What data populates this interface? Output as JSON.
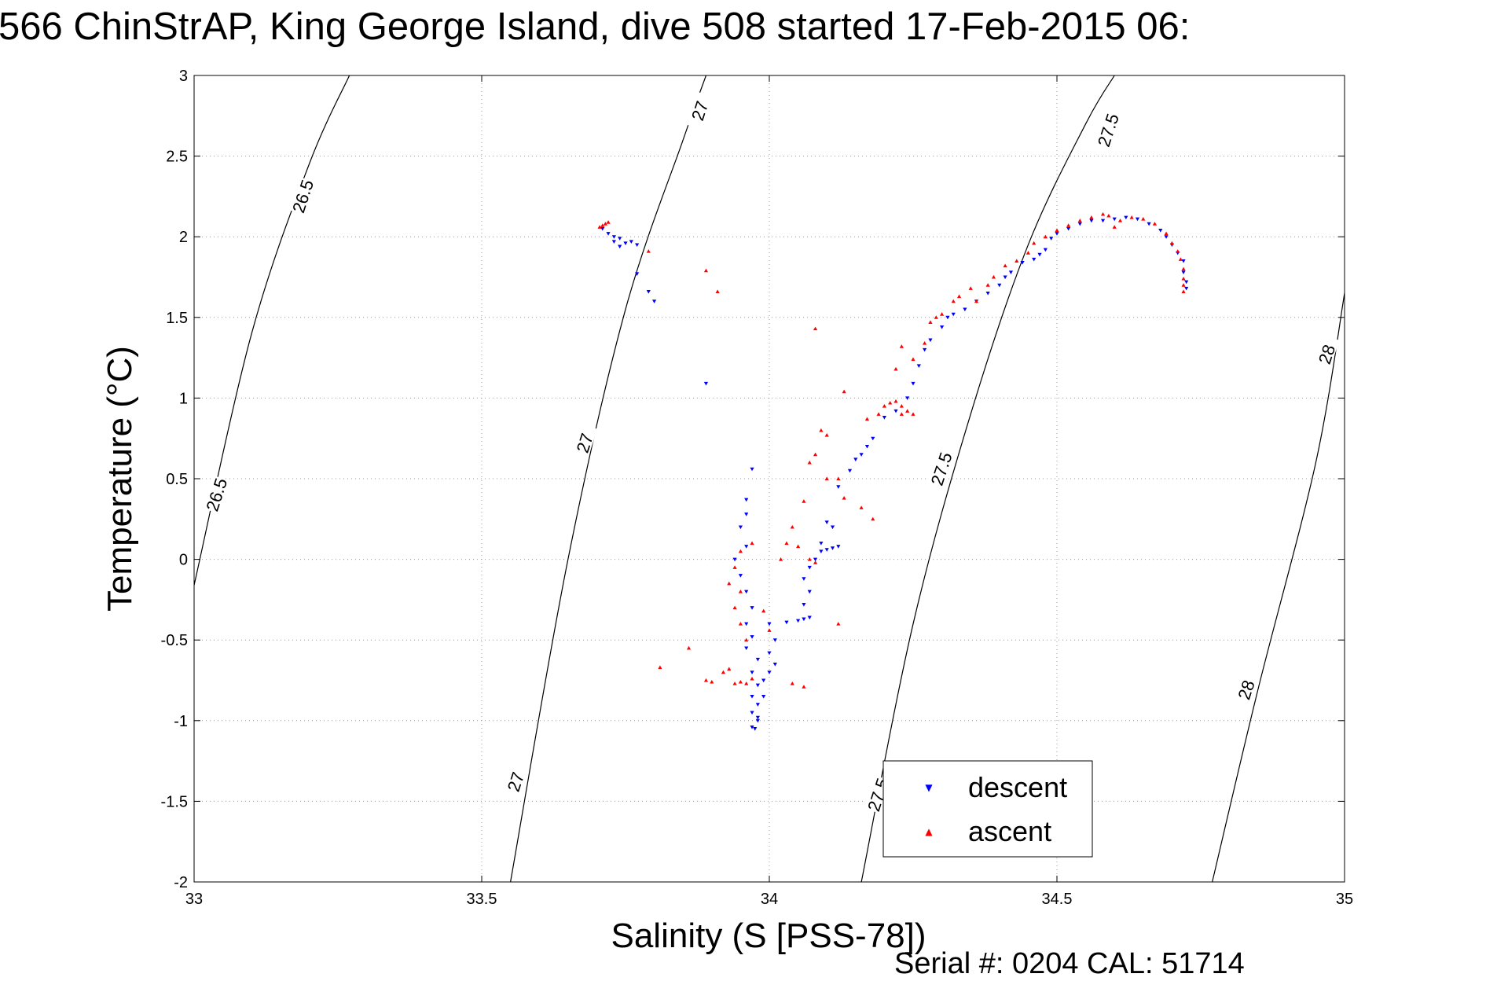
{
  "chart_data": {
    "type": "scatter",
    "title": "566 ChinStrAP, King George Island, dive 508 started 17-Feb-2015 06:",
    "xlabel": "Salinity (S [PSS-78])",
    "ylabel": "Temperature (°C)",
    "xlim": [
      33,
      35
    ],
    "ylim": [
      -2,
      3
    ],
    "xticks": [
      33,
      33.5,
      34,
      34.5,
      35
    ],
    "xtick_labels": [
      "33",
      "33.5",
      "34",
      "34.5",
      "35"
    ],
    "yticks": [
      3,
      2.5,
      2,
      1.5,
      1,
      0.5,
      0,
      -0.5,
      -1,
      -1.5,
      -2
    ],
    "ytick_labels": [
      "3",
      "2.5",
      "2",
      "1.5",
      "1",
      "0.5",
      "0",
      "-0.5",
      "-1",
      "-1.5",
      "-2"
    ],
    "grid": true,
    "legend_position": "bottom-right",
    "series": [
      {
        "name": "descent",
        "color": "#0000ff",
        "marker": "triangle-down",
        "points": [
          [
            33.71,
            2.05
          ],
          [
            33.72,
            2.02
          ],
          [
            33.73,
            2.0
          ],
          [
            33.73,
            1.97
          ],
          [
            33.74,
            1.99
          ],
          [
            33.75,
            1.96
          ],
          [
            33.74,
            1.94
          ],
          [
            33.76,
            1.97
          ],
          [
            33.77,
            1.95
          ],
          [
            33.77,
            1.77
          ],
          [
            33.79,
            1.66
          ],
          [
            33.8,
            1.6
          ],
          [
            33.89,
            1.09
          ],
          [
            33.97,
            0.56
          ],
          [
            33.96,
            0.37
          ],
          [
            33.96,
            0.28
          ],
          [
            33.95,
            0.2
          ],
          [
            33.96,
            0.08
          ],
          [
            33.94,
            0.0
          ],
          [
            33.95,
            -0.1
          ],
          [
            33.96,
            -0.2
          ],
          [
            33.97,
            -0.3
          ],
          [
            33.96,
            -0.4
          ],
          [
            33.97,
            -0.48
          ],
          [
            33.96,
            -0.55
          ],
          [
            33.98,
            -0.62
          ],
          [
            33.97,
            -0.7
          ],
          [
            33.98,
            -0.78
          ],
          [
            33.97,
            -0.85
          ],
          [
            33.98,
            -0.9
          ],
          [
            33.97,
            -0.95
          ],
          [
            33.98,
            -1.0
          ],
          [
            33.97,
            -1.04
          ],
          [
            33.975,
            -1.05
          ],
          [
            33.98,
            -0.98
          ],
          [
            33.99,
            -0.85
          ],
          [
            33.99,
            -0.75
          ],
          [
            34.0,
            -0.7
          ],
          [
            34.01,
            -0.65
          ],
          [
            34.0,
            -0.58
          ],
          [
            34.01,
            -0.5
          ],
          [
            34.0,
            -0.4
          ],
          [
            34.03,
            -0.39
          ],
          [
            34.05,
            -0.38
          ],
          [
            34.06,
            -0.37
          ],
          [
            34.07,
            -0.36
          ],
          [
            34.06,
            -0.28
          ],
          [
            34.07,
            -0.2
          ],
          [
            34.06,
            -0.12
          ],
          [
            34.07,
            -0.05
          ],
          [
            34.08,
            0.0
          ],
          [
            34.09,
            0.05
          ],
          [
            34.1,
            0.06
          ],
          [
            34.11,
            0.07
          ],
          [
            34.12,
            0.08
          ],
          [
            34.11,
            0.2
          ],
          [
            34.09,
            0.1
          ],
          [
            34.1,
            0.23
          ],
          [
            34.12,
            0.45
          ],
          [
            34.14,
            0.55
          ],
          [
            34.15,
            0.62
          ],
          [
            34.16,
            0.65
          ],
          [
            34.17,
            0.7
          ],
          [
            34.18,
            0.75
          ],
          [
            34.2,
            0.88
          ],
          [
            34.22,
            0.92
          ],
          [
            34.24,
            1.0
          ],
          [
            34.25,
            1.09
          ],
          [
            34.26,
            1.2
          ],
          [
            34.27,
            1.3
          ],
          [
            34.28,
            1.36
          ],
          [
            34.3,
            1.44
          ],
          [
            34.31,
            1.5
          ],
          [
            34.32,
            1.52
          ],
          [
            34.34,
            1.55
          ],
          [
            34.36,
            1.6
          ],
          [
            34.38,
            1.65
          ],
          [
            34.4,
            1.7
          ],
          [
            34.41,
            1.75
          ],
          [
            34.42,
            1.78
          ],
          [
            34.44,
            1.84
          ],
          [
            34.46,
            1.86
          ],
          [
            34.47,
            1.89
          ],
          [
            34.48,
            1.92
          ],
          [
            34.49,
            1.99
          ],
          [
            34.5,
            2.02
          ],
          [
            34.52,
            2.05
          ],
          [
            34.54,
            2.08
          ],
          [
            34.56,
            2.1
          ],
          [
            34.58,
            2.1
          ],
          [
            34.6,
            2.11
          ],
          [
            34.62,
            2.12
          ],
          [
            34.64,
            2.11
          ],
          [
            34.66,
            2.08
          ],
          [
            34.68,
            2.04
          ],
          [
            34.69,
            2.0
          ],
          [
            34.7,
            1.95
          ],
          [
            34.71,
            1.9
          ],
          [
            34.72,
            1.85
          ],
          [
            34.72,
            1.78
          ],
          [
            34.725,
            1.72
          ],
          [
            34.725,
            1.68
          ]
        ]
      },
      {
        "name": "ascent",
        "color": "#ff0000",
        "marker": "triangle-up",
        "points": [
          [
            33.705,
            2.06
          ],
          [
            33.715,
            2.08
          ],
          [
            33.72,
            2.09
          ],
          [
            33.71,
            2.07
          ],
          [
            33.79,
            1.91
          ],
          [
            33.89,
            1.79
          ],
          [
            33.91,
            1.66
          ],
          [
            34.08,
            1.43
          ],
          [
            33.81,
            -0.67
          ],
          [
            33.86,
            -0.55
          ],
          [
            33.89,
            -0.75
          ],
          [
            33.9,
            -0.76
          ],
          [
            33.92,
            -0.7
          ],
          [
            33.93,
            -0.68
          ],
          [
            33.94,
            -0.77
          ],
          [
            33.95,
            -0.76
          ],
          [
            33.96,
            -0.77
          ],
          [
            33.97,
            -0.74
          ],
          [
            33.96,
            -0.5
          ],
          [
            33.95,
            -0.4
          ],
          [
            33.94,
            -0.3
          ],
          [
            33.95,
            -0.2
          ],
          [
            33.93,
            -0.15
          ],
          [
            33.94,
            -0.05
          ],
          [
            33.95,
            0.05
          ],
          [
            33.97,
            0.1
          ],
          [
            33.99,
            -0.32
          ],
          [
            34.0,
            -0.44
          ],
          [
            34.04,
            -0.77
          ],
          [
            34.06,
            -0.79
          ],
          [
            34.02,
            0.0
          ],
          [
            34.03,
            0.1
          ],
          [
            34.04,
            0.2
          ],
          [
            34.05,
            0.08
          ],
          [
            34.07,
            0.0
          ],
          [
            34.08,
            -0.02
          ],
          [
            34.06,
            0.36
          ],
          [
            34.07,
            0.6
          ],
          [
            34.08,
            0.65
          ],
          [
            34.1,
            0.5
          ],
          [
            34.09,
            0.8
          ],
          [
            34.1,
            0.77
          ],
          [
            34.12,
            0.5
          ],
          [
            34.12,
            -0.4
          ],
          [
            34.16,
            0.32
          ],
          [
            34.18,
            0.25
          ],
          [
            34.13,
            0.38
          ],
          [
            34.13,
            1.04
          ],
          [
            34.17,
            0.87
          ],
          [
            34.19,
            0.9
          ],
          [
            34.2,
            0.95
          ],
          [
            34.21,
            0.97
          ],
          [
            34.22,
            0.98
          ],
          [
            34.23,
            0.95
          ],
          [
            34.24,
            0.92
          ],
          [
            34.23,
            0.9
          ],
          [
            34.25,
            0.9
          ],
          [
            34.22,
            1.18
          ],
          [
            34.23,
            1.32
          ],
          [
            34.25,
            1.24
          ],
          [
            34.27,
            1.34
          ],
          [
            34.28,
            1.47
          ],
          [
            34.29,
            1.5
          ],
          [
            34.3,
            1.52
          ],
          [
            34.32,
            1.6
          ],
          [
            34.33,
            1.63
          ],
          [
            34.35,
            1.68
          ],
          [
            34.36,
            1.6
          ],
          [
            34.38,
            1.7
          ],
          [
            34.39,
            1.75
          ],
          [
            34.41,
            1.82
          ],
          [
            34.43,
            1.85
          ],
          [
            34.45,
            1.9
          ],
          [
            34.46,
            1.96
          ],
          [
            34.48,
            2.0
          ],
          [
            34.5,
            2.04
          ],
          [
            34.52,
            2.07
          ],
          [
            34.54,
            2.1
          ],
          [
            34.56,
            2.12
          ],
          [
            34.58,
            2.14
          ],
          [
            34.59,
            2.13
          ],
          [
            34.6,
            2.06
          ],
          [
            34.61,
            2.1
          ],
          [
            34.63,
            2.12
          ],
          [
            34.65,
            2.11
          ],
          [
            34.67,
            2.08
          ],
          [
            34.69,
            2.02
          ],
          [
            34.7,
            1.96
          ],
          [
            34.71,
            1.91
          ],
          [
            34.715,
            1.86
          ],
          [
            34.72,
            1.8
          ],
          [
            34.72,
            1.74
          ],
          [
            34.72,
            1.7
          ],
          [
            34.72,
            1.66
          ]
        ]
      }
    ],
    "density_contours": [
      {
        "level": "26.5",
        "points": [
          [
            33.0,
            -0.16
          ],
          [
            33.1,
            1.4
          ],
          [
            33.2,
            2.45
          ],
          [
            33.27,
            3.0
          ]
        ],
        "labels": [
          {
            "x": 33.04,
            "y": 0.4,
            "text": "26.5"
          },
          {
            "x": 33.19,
            "y": 2.25,
            "text": "26.5"
          }
        ]
      },
      {
        "level": "27",
        "points": [
          [
            33.55,
            -2.0
          ],
          [
            33.65,
            0.0
          ],
          [
            33.75,
            1.55
          ],
          [
            33.85,
            2.6
          ],
          [
            33.89,
            3.0
          ]
        ],
        "labels": [
          {
            "x": 33.56,
            "y": -1.38,
            "text": "27"
          },
          {
            "x": 33.68,
            "y": 0.72,
            "text": "27"
          },
          {
            "x": 33.88,
            "y": 2.78,
            "text": "27"
          }
        ]
      },
      {
        "level": "27.5",
        "points": [
          [
            34.16,
            -2.0
          ],
          [
            34.25,
            -0.4
          ],
          [
            34.35,
            0.9
          ],
          [
            34.45,
            1.95
          ],
          [
            34.55,
            2.7
          ],
          [
            34.6,
            3.0
          ]
        ],
        "labels": [
          {
            "x": 34.19,
            "y": -1.46,
            "text": "27.5"
          },
          {
            "x": 34.3,
            "y": 0.56,
            "text": "27.5"
          },
          {
            "x": 34.59,
            "y": 2.66,
            "text": "27.5"
          }
        ]
      },
      {
        "level": "28",
        "points": [
          [
            34.77,
            -2.0
          ],
          [
            34.85,
            -0.8
          ],
          [
            34.95,
            0.6
          ],
          [
            35.0,
            1.65
          ]
        ],
        "labels": [
          {
            "x": 34.83,
            "y": -0.81,
            "text": "28"
          },
          {
            "x": 34.97,
            "y": 1.27,
            "text": "28"
          }
        ]
      }
    ]
  },
  "footer": {
    "serial_text": "Serial #: 0204  CAL: 51714"
  }
}
